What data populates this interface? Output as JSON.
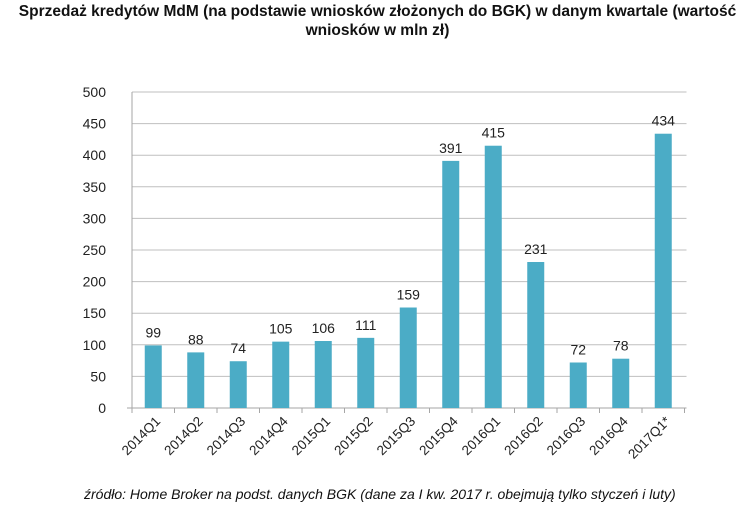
{
  "chart_data": {
    "type": "bar",
    "title_line1": "Sprzedaż kredytów MdM (na podstawie wniosków złożonych do BGK) w danym kwartale (wartość",
    "title_line2": "wniosków w mln zł)",
    "categories": [
      "2014Q1",
      "2014Q2",
      "2014Q3",
      "2014Q4",
      "2015Q1",
      "2015Q2",
      "2015Q3",
      "2015Q4",
      "2016Q1",
      "2016Q2",
      "2016Q3",
      "2016Q4",
      "2017Q1*"
    ],
    "values": [
      99,
      88,
      74,
      105,
      106,
      111,
      159,
      391,
      415,
      231,
      72,
      78,
      434
    ],
    "xlabel": "",
    "ylabel": "",
    "ylim": [
      0,
      500
    ],
    "yticks": [
      0,
      50,
      100,
      150,
      200,
      250,
      300,
      350,
      400,
      450,
      500
    ],
    "grid": true,
    "bar_color": "#4bacc6",
    "source": "źródło: Home Broker na podst. danych BGK (dane za I kw. 2017 r. obejmują tylko styczeń i luty)"
  }
}
